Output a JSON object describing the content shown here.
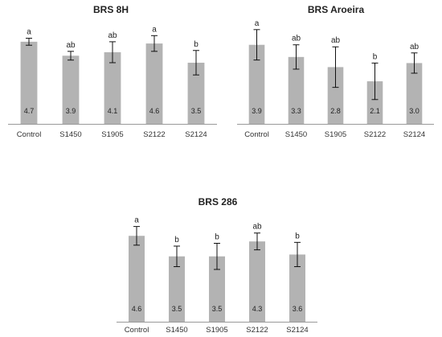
{
  "chart_data": [
    {
      "type": "bar",
      "title": "BRS 8H",
      "categories": [
        "Control",
        "S1450",
        "S1905",
        "S2122",
        "S2124"
      ],
      "values": [
        4.7,
        3.9,
        4.1,
        4.6,
        3.5
      ],
      "errors": [
        0.2,
        0.25,
        0.6,
        0.45,
        0.7
      ],
      "letters": [
        "a",
        "ab",
        "ab",
        "a",
        "b"
      ],
      "value_labels": [
        "4.7",
        "3.9",
        "4.1",
        "4.6",
        "3.5"
      ],
      "bar_color": "#b3b3b3",
      "ylim": [
        0,
        5.8
      ],
      "grid": false,
      "axis_color": "#999999"
    },
    {
      "type": "bar",
      "title": "BRS Aroeira",
      "categories": [
        "Control",
        "S1450",
        "S1905",
        "S2122",
        "S2124"
      ],
      "values": [
        3.9,
        3.3,
        2.8,
        2.1,
        3.0
      ],
      "errors": [
        0.75,
        0.6,
        1.0,
        0.9,
        0.5
      ],
      "letters": [
        "a",
        "ab",
        "ab",
        "b",
        "ab"
      ],
      "value_labels": [
        "3.9",
        "3.3",
        "2.8",
        "2.1",
        "3.0"
      ],
      "bar_color": "#b3b3b3",
      "ylim": [
        0,
        5.0
      ],
      "grid": false,
      "axis_color": "#999999"
    },
    {
      "type": "bar",
      "title": "BRS 286",
      "categories": [
        "Control",
        "S1450",
        "S1905",
        "S2122",
        "S2124"
      ],
      "values": [
        4.6,
        3.5,
        3.5,
        4.3,
        3.6
      ],
      "errors": [
        0.5,
        0.55,
        0.7,
        0.45,
        0.65
      ],
      "letters": [
        "a",
        "b",
        "b",
        "ab",
        "b"
      ],
      "value_labels": [
        "4.6",
        "3.5",
        "3.5",
        "4.3",
        "3.6"
      ],
      "bar_color": "#b3b3b3",
      "ylim": [
        0,
        5.6
      ],
      "grid": false,
      "axis_color": "#999999"
    }
  ]
}
